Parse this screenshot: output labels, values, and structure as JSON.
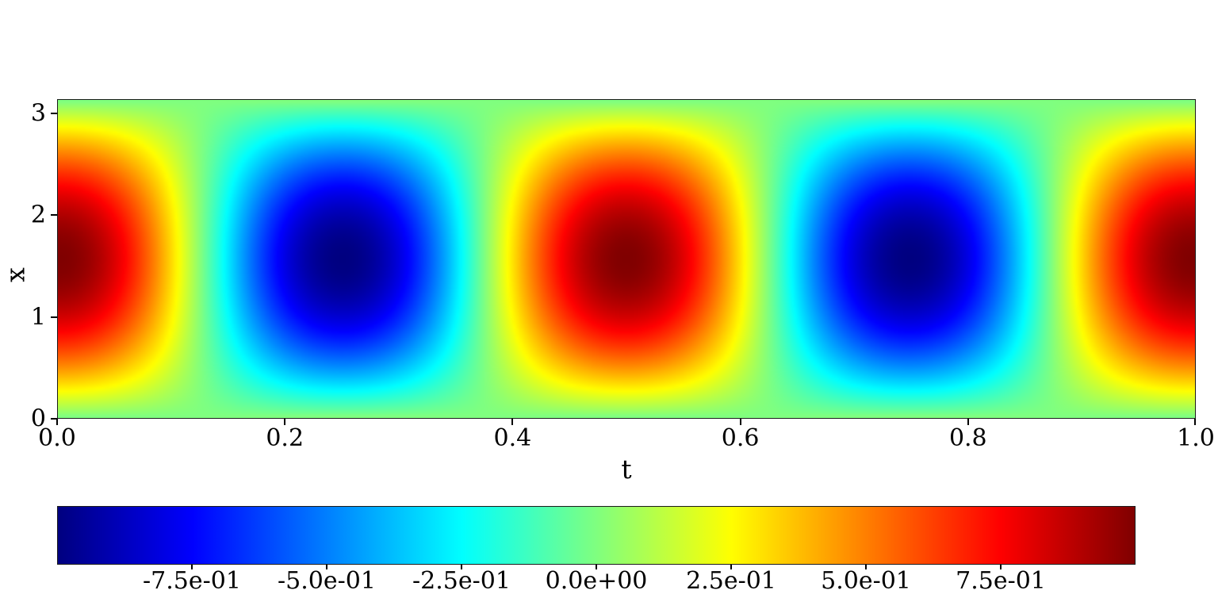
{
  "figure": {
    "background": "#ffffff"
  },
  "chart_data": {
    "type": "heatmap",
    "title": "",
    "xlabel": "t",
    "ylabel": "x",
    "x_range": [
      0,
      1
    ],
    "y_range": [
      0,
      3.14159265
    ],
    "value_range": [
      -1,
      1
    ],
    "grid": false,
    "legend": "none",
    "x_ticks": {
      "values": [
        0.0,
        0.2,
        0.4,
        0.6,
        0.8,
        1.0
      ],
      "labels": [
        "0.0",
        "0.2",
        "0.4",
        "0.6",
        "0.8",
        "1.0"
      ]
    },
    "y_ticks": {
      "values": [
        0,
        1,
        2,
        3
      ],
      "labels": [
        "0",
        "1",
        "2",
        "3"
      ]
    },
    "model": {
      "description": "u(x,t) = sin(x) * cos(4*pi*t), x in [0,pi], t in [0,1]",
      "amplitude": 1,
      "x_wavenumber": 1,
      "t_frequency": 2
    },
    "sample_grid": {
      "t": [
        0,
        0.125,
        0.25,
        0.375,
        0.5,
        0.625,
        0.75,
        0.875,
        1.0
      ],
      "x": [
        0,
        0.785,
        1.571,
        2.356,
        3.142
      ],
      "values": [
        [
          0,
          0,
          0,
          0,
          0,
          0,
          0,
          0,
          0
        ],
        [
          0.707,
          0,
          -0.707,
          0,
          0.707,
          0,
          -0.707,
          0,
          0.707
        ],
        [
          1,
          0,
          -1,
          0,
          1,
          0,
          -1,
          0,
          1
        ],
        [
          0.707,
          0,
          -0.707,
          0,
          0.707,
          0,
          -0.707,
          0,
          0.707
        ],
        [
          0,
          0,
          0,
          0,
          0,
          0,
          0,
          0,
          0
        ]
      ]
    },
    "colormap": {
      "name": "jet",
      "stops": [
        [
          0.0,
          "#000080"
        ],
        [
          0.125,
          "#0000ff"
        ],
        [
          0.375,
          "#00ffff"
        ],
        [
          0.625,
          "#ffff00"
        ],
        [
          0.875,
          "#ff0000"
        ],
        [
          1.0,
          "#800000"
        ]
      ]
    },
    "colorbar": {
      "orientation": "horizontal",
      "tick_values": [
        -0.75,
        -0.5,
        -0.25,
        0.0,
        0.25,
        0.5,
        0.75
      ],
      "tick_labels": [
        "-7.5e-01",
        "-5.0e-01",
        "-2.5e-01",
        "0.0e+00",
        "2.5e-01",
        "5.0e-01",
        "7.5e-01"
      ]
    }
  }
}
